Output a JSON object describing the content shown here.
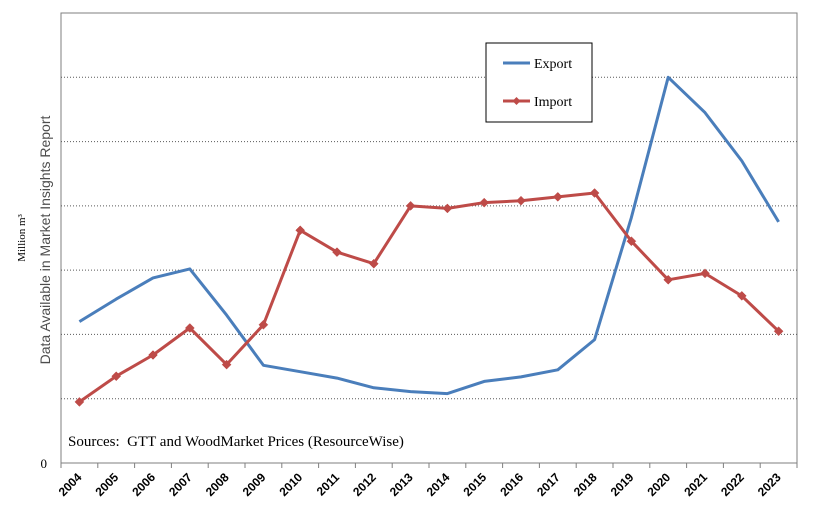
{
  "chart_data": {
    "type": "line",
    "title": "",
    "xlabel": "",
    "ylabel": "Million m³",
    "ylabel_overlay": "Data Available in Market Insights Report",
    "y_zero_label": "0",
    "source_note": "Sources:  GTT and WoodMarket Prices (ResourceWise)",
    "categories": [
      "2004",
      "2005",
      "2006",
      "2007",
      "2008",
      "2009",
      "2010",
      "2011",
      "2012",
      "2013",
      "2014",
      "2015",
      "2016",
      "2017",
      "2018",
      "2019",
      "2020",
      "2021",
      "2022",
      "2023"
    ],
    "series": [
      {
        "name": "Export",
        "color": "#4a7ebb",
        "marker": "none",
        "values": [
          2.2,
          2.55,
          2.88,
          3.02,
          2.3,
          1.52,
          1.42,
          1.32,
          1.17,
          1.11,
          1.08,
          1.27,
          1.34,
          1.45,
          1.92,
          3.82,
          6.0,
          5.45,
          4.7,
          3.75
        ]
      },
      {
        "name": "Import",
        "color": "#be4b48",
        "marker": "diamond",
        "values": [
          0.95,
          1.35,
          1.68,
          2.1,
          1.53,
          2.15,
          3.62,
          3.28,
          3.1,
          4.0,
          3.96,
          4.05,
          4.08,
          4.14,
          4.2,
          3.45,
          2.85,
          2.95,
          2.6,
          2.05
        ]
      }
    ],
    "ylim": [
      0,
      7
    ],
    "grid": "horizontal-dotted",
    "legend_position": "top-center-right"
  }
}
